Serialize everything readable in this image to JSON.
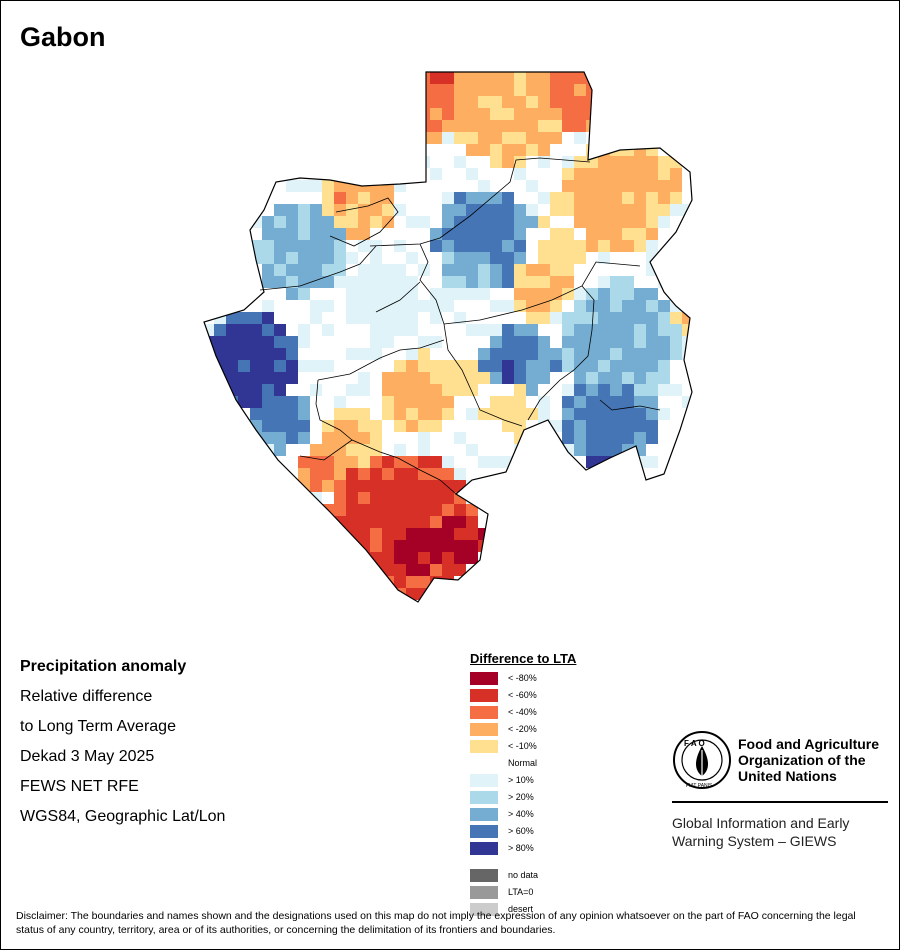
{
  "title": "Gabon",
  "info": {
    "heading": "Precipitation anomaly",
    "line1": "Relative difference",
    "line2": "to Long Term Average",
    "line3": "Dekad 3 May 2025",
    "line4": "FEWS NET RFE",
    "line5": "WGS84, Geographic Lat/Lon"
  },
  "legend": {
    "title": "Difference to LTA",
    "classes": [
      {
        "label": "< -80%",
        "color": "#a50026"
      },
      {
        "label": "< -60%",
        "color": "#d73027"
      },
      {
        "label": "< -40%",
        "color": "#f46d43"
      },
      {
        "label": "< -20%",
        "color": "#fdae61"
      },
      {
        "label": "< -10%",
        "color": "#fee090"
      },
      {
        "label": "Normal",
        "color": "#ffffff"
      },
      {
        "label": "> 10%",
        "color": "#e0f3f8"
      },
      {
        "label": "> 20%",
        "color": "#abd9e9"
      },
      {
        "label": "> 40%",
        "color": "#74add1"
      },
      {
        "label": "> 60%",
        "color": "#4575b4"
      },
      {
        "label": "> 80%",
        "color": "#313695"
      }
    ],
    "extra": [
      {
        "label": "no data",
        "color": "#666666"
      },
      {
        "label": "LTA=0",
        "color": "#999999"
      },
      {
        "label": "desert",
        "color": "#cccccc"
      }
    ]
  },
  "org": {
    "logo_text": "FAO",
    "logo_motto": "FIAT PANIS",
    "name": "Food and Agriculture Organization of the United Nations",
    "system": "Global Information and Early Warning System – GIEWS"
  },
  "disclaimer": "Disclaimer: The boundaries and names shown and the designations used on this map do not imply the expression of any opinion whatsoever on the part of FAO concerning the legal status of any country, territory, area or of its authorities, or concerning the delimitation of its frontiers and boundaries."
}
